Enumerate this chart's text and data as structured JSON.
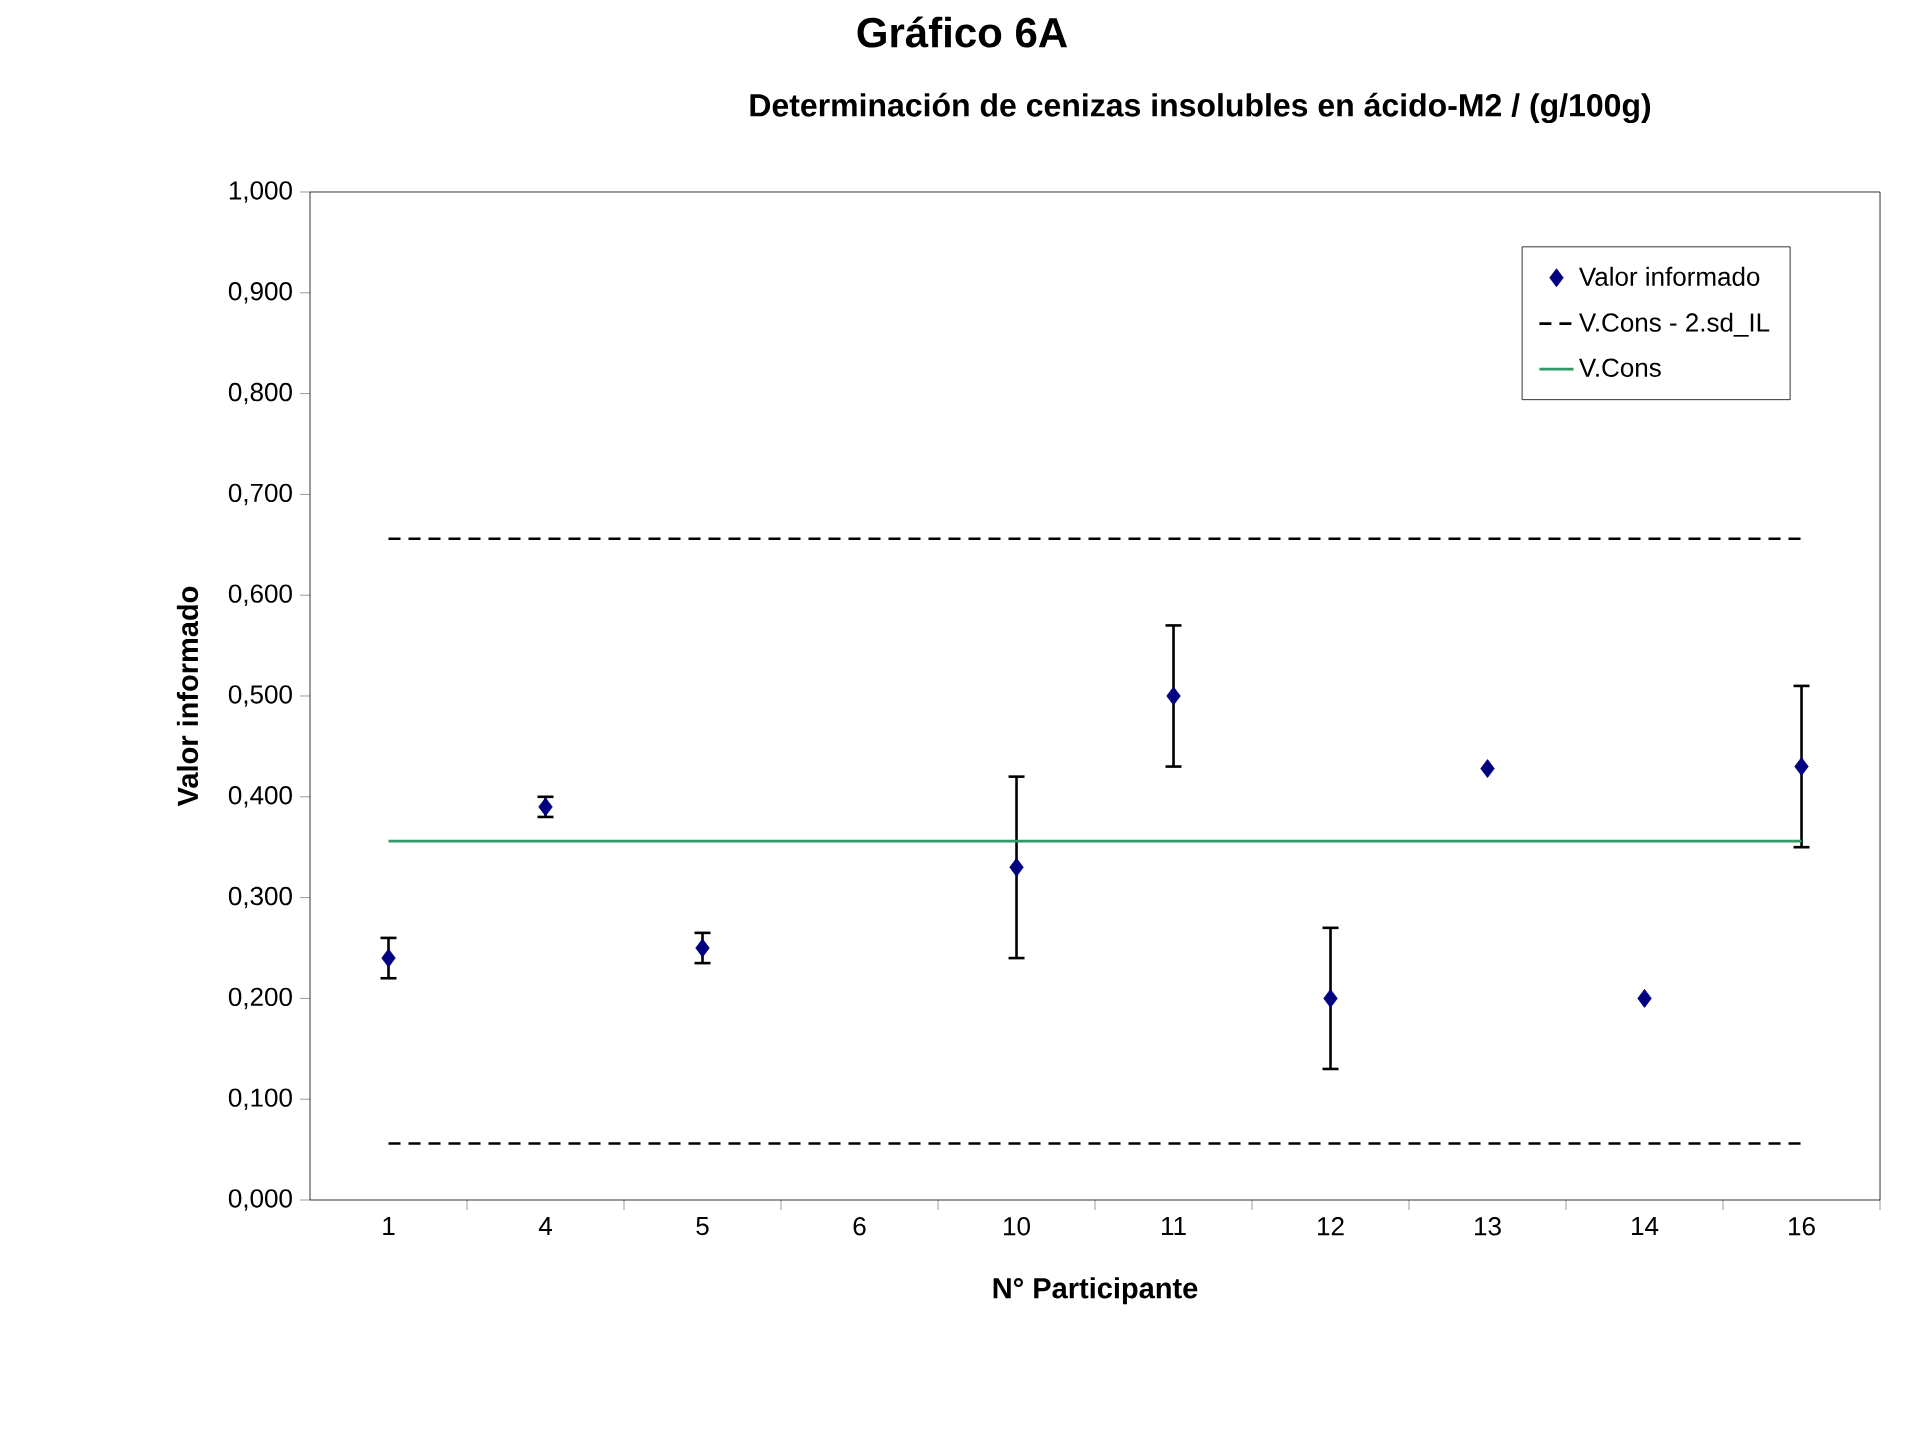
{
  "chart_data": {
    "type": "scatter",
    "title": "Gráfico 6A",
    "subtitle": "Determinación de cenizas insolubles en ácido-M2 / (g/100g)",
    "xlabel": "N° Participante",
    "ylabel": "Valor informado",
    "categories": [
      "1",
      "4",
      "5",
      "6",
      "10",
      "11",
      "12",
      "13",
      "14",
      "16"
    ],
    "ylim": [
      0,
      1
    ],
    "yticks": [
      {
        "value": 0,
        "label": "0,000"
      },
      {
        "value": 0.1,
        "label": "0,100"
      },
      {
        "value": 0.2,
        "label": "0,200"
      },
      {
        "value": 0.3,
        "label": "0,300"
      },
      {
        "value": 0.4,
        "label": "0,400"
      },
      {
        "value": 0.5,
        "label": "0,500"
      },
      {
        "value": 0.6,
        "label": "0,600"
      },
      {
        "value": 0.7,
        "label": "0,700"
      },
      {
        "value": 0.8,
        "label": "0,800"
      },
      {
        "value": 0.9,
        "label": "0,900"
      },
      {
        "value": 1,
        "label": "1,000"
      }
    ],
    "legend": "top right",
    "series": [
      {
        "name": "Valor informado",
        "marker": "diamond",
        "color": "#000080",
        "values": [
          0.24,
          0.39,
          0.25,
          null,
          0.33,
          0.5,
          0.2,
          0.428,
          0.2,
          0.43
        ],
        "errors": [
          0.02,
          0.01,
          0.015,
          null,
          0.09,
          0.07,
          0.07,
          null,
          null,
          0.08
        ]
      },
      {
        "name": "V.Cons - 2.sd_IL",
        "type": "line",
        "line_style": "dashed",
        "color": "#000000",
        "values": [
          0.656,
          0.656,
          0.656,
          0.656,
          0.656,
          0.656,
          0.656,
          0.656,
          0.656,
          0.656
        ]
      },
      {
        "name": "V.Cons",
        "type": "line",
        "line_style": "solid",
        "color": "#339966",
        "values": [
          0.356,
          0.356,
          0.356,
          0.356,
          0.356,
          0.356,
          0.356,
          0.356,
          0.356,
          0.356
        ]
      },
      {
        "type": "line",
        "line_style": "dashed",
        "color": "#000000",
        "values": [
          0.056,
          0.056,
          0.056,
          0.056,
          0.056,
          0.056,
          0.056,
          0.056,
          0.056,
          0.056
        ]
      }
    ]
  }
}
